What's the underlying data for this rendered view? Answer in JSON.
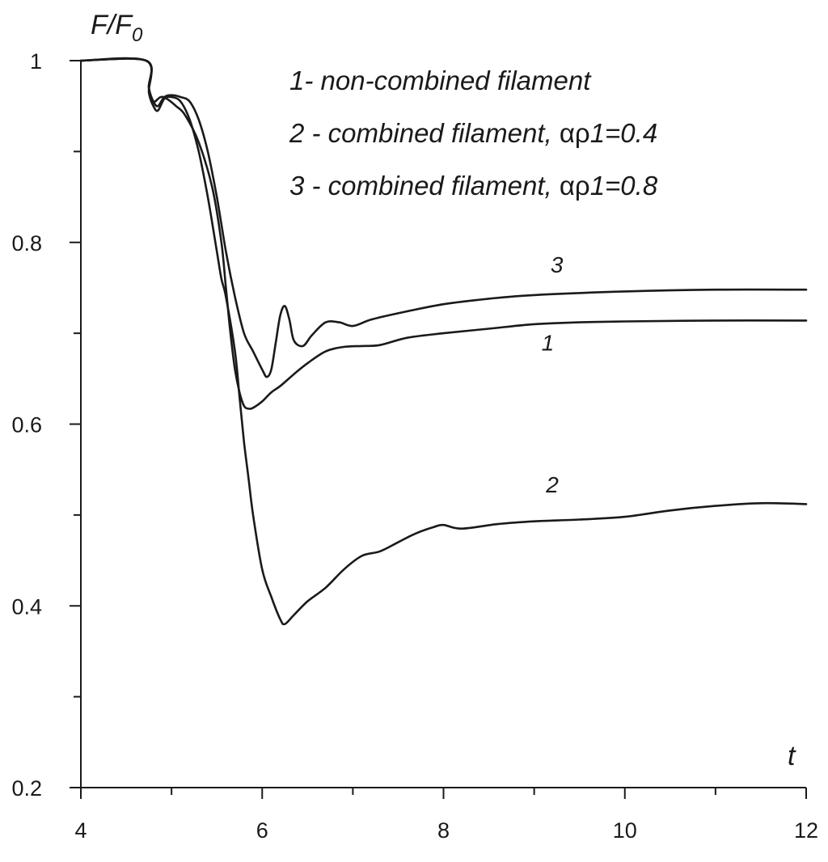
{
  "chart_data": {
    "type": "line",
    "ylabel_main": "F/F",
    "ylabel_sub": "0",
    "xlabel": "t",
    "xlim": [
      4,
      12
    ],
    "ylim": [
      0.2,
      1.0
    ],
    "x_ticks": [
      4,
      6,
      8,
      10,
      12
    ],
    "x_tick_labels": [
      "4",
      "6",
      "8",
      "10",
      "12"
    ],
    "x_minor_ticks": [
      5,
      7,
      9,
      11
    ],
    "y_ticks": [
      0.2,
      0.4,
      0.6,
      0.8,
      1.0
    ],
    "y_tick_labels": [
      "0.2",
      "0.4",
      "0.6",
      "0.8",
      "1"
    ],
    "y_minor_ticks": [
      0.3,
      0.5,
      0.7,
      0.9
    ],
    "grid": false,
    "legend_placement": "top-right",
    "legend": [
      {
        "number": "1",
        "text": "- non-combined filament",
        "greek": "",
        "tail": ""
      },
      {
        "number": "2",
        "text": " - combined filament, ",
        "greek": "αρ",
        "tail": "1=0.4"
      },
      {
        "number": "3",
        "text": " - combined filament, ",
        "greek": "αρ",
        "tail": "1=0.8"
      }
    ],
    "series": [
      {
        "name": "1",
        "color": "#1a1a1a",
        "x": [
          4.0,
          4.72,
          4.75,
          4.8,
          4.88,
          4.95,
          5.05,
          5.15,
          5.3,
          5.45,
          5.55,
          5.6,
          5.65,
          5.7,
          5.75,
          5.8,
          5.85,
          5.9,
          6.0,
          6.1,
          6.2,
          6.35,
          6.5,
          6.7,
          6.9,
          7.1,
          7.3,
          7.6,
          8.0,
          8.5,
          9.0,
          9.5,
          10.0,
          11.0,
          12.0
        ],
        "y": [
          1.0,
          1.0,
          0.97,
          0.955,
          0.96,
          0.958,
          0.95,
          0.94,
          0.91,
          0.86,
          0.8,
          0.75,
          0.7,
          0.66,
          0.635,
          0.62,
          0.617,
          0.618,
          0.625,
          0.635,
          0.642,
          0.655,
          0.667,
          0.68,
          0.685,
          0.686,
          0.687,
          0.695,
          0.7,
          0.705,
          0.71,
          0.712,
          0.713,
          0.714,
          0.714
        ]
      },
      {
        "name": "2",
        "color": "#1a1a1a",
        "x": [
          4.0,
          4.72,
          4.75,
          4.8,
          4.85,
          4.92,
          5.0,
          5.1,
          5.2,
          5.3,
          5.4,
          5.5,
          5.55,
          5.6,
          5.7,
          5.75,
          5.8,
          5.85,
          5.9,
          6.0,
          6.1,
          6.2,
          6.25,
          6.35,
          6.5,
          6.7,
          6.9,
          7.1,
          7.3,
          7.5,
          7.7,
          7.9,
          8.0,
          8.2,
          8.6,
          9.0,
          9.5,
          10.0,
          10.5,
          11.0,
          11.5,
          12.0
        ],
        "y": [
          1.0,
          1.0,
          0.965,
          0.95,
          0.945,
          0.958,
          0.96,
          0.955,
          0.935,
          0.9,
          0.85,
          0.79,
          0.76,
          0.74,
          0.68,
          0.63,
          0.58,
          0.54,
          0.5,
          0.44,
          0.41,
          0.385,
          0.38,
          0.39,
          0.405,
          0.42,
          0.44,
          0.455,
          0.46,
          0.47,
          0.48,
          0.487,
          0.489,
          0.485,
          0.49,
          0.493,
          0.495,
          0.498,
          0.505,
          0.51,
          0.513,
          0.512
        ]
      },
      {
        "name": "3",
        "color": "#1a1a1a",
        "x": [
          4.0,
          4.72,
          4.75,
          4.8,
          4.85,
          4.92,
          5.0,
          5.1,
          5.2,
          5.3,
          5.4,
          5.5,
          5.6,
          5.7,
          5.8,
          5.9,
          6.0,
          6.05,
          6.1,
          6.15,
          6.2,
          6.25,
          6.3,
          6.35,
          6.45,
          6.55,
          6.7,
          6.85,
          7.0,
          7.2,
          7.5,
          8.0,
          8.5,
          9.0,
          10.0,
          11.0,
          12.0
        ],
        "y": [
          1.0,
          1.0,
          0.97,
          0.955,
          0.95,
          0.96,
          0.962,
          0.96,
          0.955,
          0.935,
          0.9,
          0.85,
          0.79,
          0.74,
          0.7,
          0.68,
          0.66,
          0.652,
          0.66,
          0.69,
          0.72,
          0.73,
          0.715,
          0.692,
          0.686,
          0.698,
          0.712,
          0.712,
          0.708,
          0.715,
          0.722,
          0.732,
          0.738,
          0.742,
          0.746,
          0.748,
          0.748
        ]
      }
    ],
    "curve_labels": [
      {
        "text": "3",
        "x": 9.25,
        "y": 0.767
      },
      {
        "text": "1",
        "x": 9.15,
        "y": 0.681
      },
      {
        "text": "2",
        "x": 9.2,
        "y": 0.525
      }
    ]
  }
}
